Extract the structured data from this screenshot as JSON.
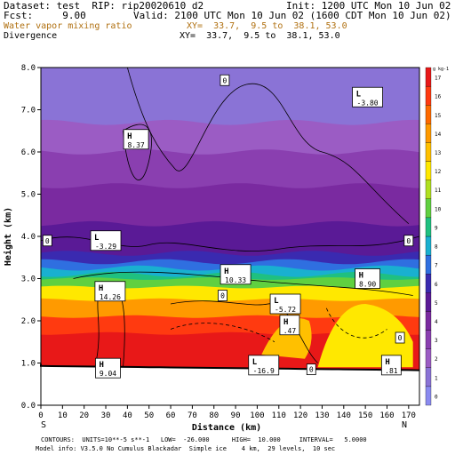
{
  "header": {
    "dataset": "Dataset: test  RIP: rip20020610 d2",
    "init": "Init: 1200 UTC Mon 10 Jun 02",
    "fcst": "Fcst:     9.00",
    "valid": "Valid: 2100 UTC Mon 10 Jun 02 (1600 CDT Mon 10 Jun 02)",
    "field1": "Water vapor mixing ratio",
    "xy1": "XY=  33.7,  9.5 to  38.1, 53.0",
    "field2": "Divergence",
    "xy2": "XY=  33.7,  9.5 to  38.1, 53.0"
  },
  "compass": {
    "left": "S",
    "right": "N"
  },
  "footer": {
    "line1": "CONTOURS:  UNITS=10**-5 s**-1   LOW=  -26.000      HIGH=  10.000     INTERVAL=   5.0000",
    "line2": "Model info: V3.5.0 No Cumulus Blackadar  Simple ice    4 km,  29 levels,  10 sec"
  },
  "colors": {
    "shade": [
      "#8a8af0",
      "#8a73d6",
      "#9b5cc4",
      "#8a3fb0",
      "#7a2aa0",
      "#5a1a96",
      "#3a2ab0",
      "#2f6fe0",
      "#19b0d0",
      "#1fc080",
      "#60d040",
      "#b0e020",
      "#ffe800",
      "#ffc000",
      "#ff9a00",
      "#ff6a00",
      "#ff3a10",
      "#e81818"
    ],
    "ground": "#000000"
  },
  "chart_data": {
    "type": "heatmap",
    "title": "Water vapor mixing ratio",
    "xlabel": "Distance (km)",
    "ylabel": "Height (km)",
    "x_ticks": [
      0,
      10,
      20,
      30,
      40,
      50,
      60,
      70,
      80,
      90,
      100,
      110,
      120,
      130,
      140,
      150,
      160,
      170
    ],
    "y_ticks": [
      0.0,
      1.0,
      2.0,
      3.0,
      4.0,
      5.0,
      6.0,
      7.0,
      8.0
    ],
    "xlim": [
      0,
      175
    ],
    "ylim": [
      0,
      8
    ],
    "colorbar": {
      "unit": "g kg-1",
      "levels": [
        0,
        1,
        2,
        3,
        4,
        5,
        6,
        7,
        8,
        9,
        10,
        11,
        12,
        13,
        14,
        15,
        16,
        17
      ]
    },
    "moisture_layers": [
      {
        "top_km": 8.0,
        "level": 1
      },
      {
        "top_km": 6.7,
        "level": 2
      },
      {
        "top_km": 6.0,
        "level": 3
      },
      {
        "top_km": 5.2,
        "level": 4
      },
      {
        "top_km": 4.3,
        "level": 5
      },
      {
        "top_km": 3.6,
        "level": 6
      },
      {
        "top_km": 3.4,
        "level": 7
      },
      {
        "top_km": 3.25,
        "level": 8
      },
      {
        "top_km": 3.1,
        "level": 9
      },
      {
        "top_km": 3.0,
        "level": 10
      },
      {
        "top_km": 2.8,
        "level": 12
      },
      {
        "top_km": 2.5,
        "level": 14
      },
      {
        "top_km": 2.1,
        "level": 16
      },
      {
        "top_km": 1.7,
        "level": 17
      }
    ],
    "labels": [
      {
        "kind": "L",
        "value": "-3.80",
        "x": 151,
        "y": 7.3
      },
      {
        "kind": "H",
        "value": "8.37",
        "x": 44,
        "y": 6.3
      },
      {
        "kind": "L",
        "value": "-3.29",
        "x": 30,
        "y": 3.9
      },
      {
        "kind": "H",
        "value": "10.33",
        "x": 90,
        "y": 3.1
      },
      {
        "kind": "H",
        "value": "8.90",
        "x": 151,
        "y": 3.0
      },
      {
        "kind": "H",
        "value": "14.26",
        "x": 32,
        "y": 2.7
      },
      {
        "kind": "L",
        "value": "-5.72",
        "x": 113,
        "y": 2.4
      },
      {
        "kind": "H",
        "value": ".47",
        "x": 115,
        "y": 1.9
      },
      {
        "kind": "H",
        "value": "9.04",
        "x": 31,
        "y": 0.88
      },
      {
        "kind": "L",
        "value": "-16.9",
        "x": 103,
        "y": 0.95
      },
      {
        "kind": "H",
        "value": ".81",
        "x": 162,
        "y": 0.95
      }
    ],
    "zero_labels": [
      {
        "value": "0",
        "x": 85,
        "y": 7.7
      },
      {
        "value": "0",
        "x": 3,
        "y": 3.9
      },
      {
        "value": "0",
        "x": 170,
        "y": 3.9
      },
      {
        "value": "0",
        "x": 84,
        "y": 2.6
      },
      {
        "value": "0",
        "x": 166,
        "y": 1.6
      },
      {
        "value": "0",
        "x": 125,
        "y": 0.85
      }
    ]
  }
}
